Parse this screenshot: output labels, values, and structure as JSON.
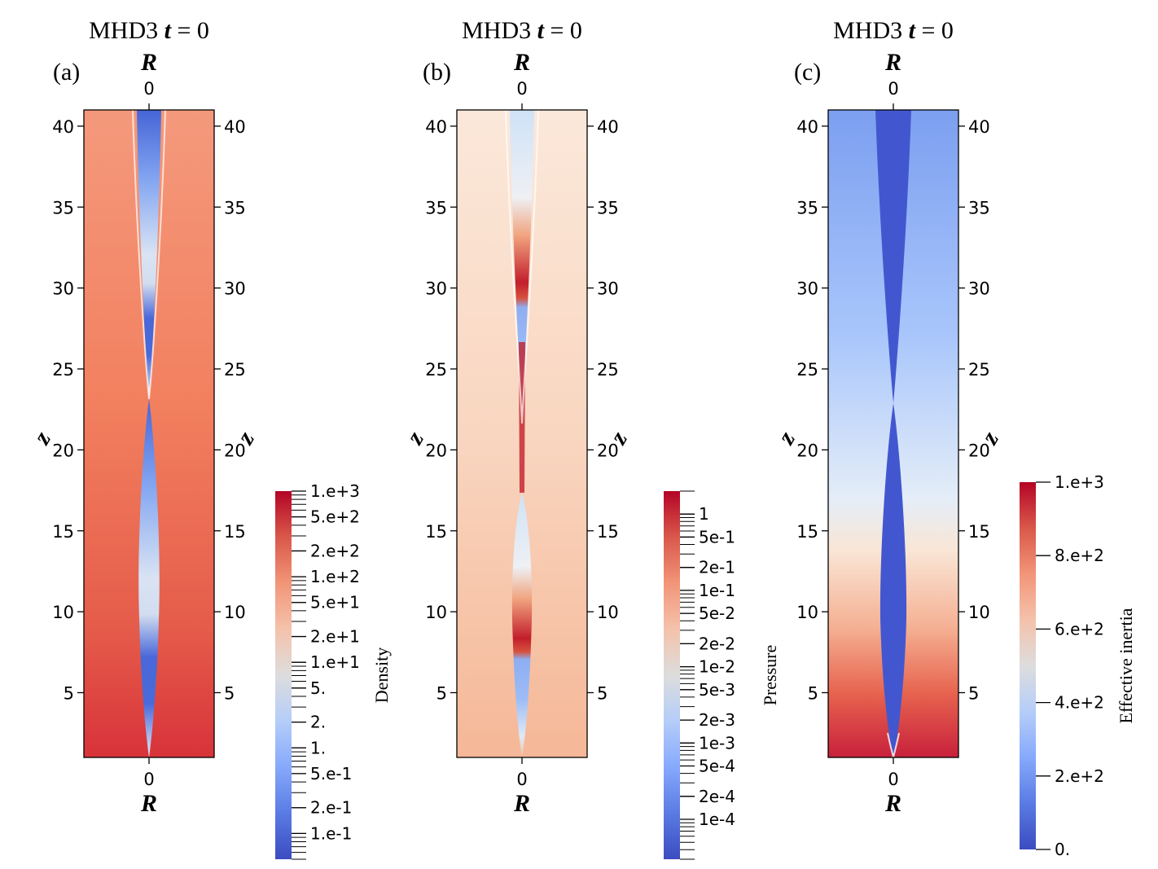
{
  "chart_data": [
    {
      "type": "heatmap",
      "panel_label": "(a)",
      "title_prefix": "MHD3",
      "title_var": "t",
      "title_suffix": " = 0",
      "xlabel": "R",
      "ylabel": "z",
      "x_ticks": [
        "0"
      ],
      "y_ticks": [
        5,
        10,
        15,
        20,
        25,
        30,
        35,
        40
      ],
      "ylim": [
        1,
        41
      ],
      "colorbar": {
        "label": "Density",
        "scale": "log",
        "range": [
          0.05,
          1000
        ],
        "ticks": [
          "1.e+3",
          "5.e+2",
          "2.e+2",
          "1.e+2",
          "5.e+1",
          "2.e+1",
          "1.e+1",
          "5.",
          "2.",
          "1.",
          "5.e-1",
          "2.e-1",
          "1.e-1"
        ],
        "tick_values": [
          1000,
          500,
          200,
          100,
          50,
          20,
          10,
          5,
          2,
          1,
          0.5,
          0.2,
          0.1
        ],
        "colormap": "coolwarm"
      }
    },
    {
      "type": "heatmap",
      "panel_label": "(b)",
      "title_prefix": "MHD3",
      "title_var": "t",
      "title_suffix": " = 0",
      "xlabel": "R",
      "ylabel": "z",
      "x_ticks": [
        "0"
      ],
      "y_ticks": [
        5,
        10,
        15,
        20,
        25,
        30,
        35,
        40
      ],
      "ylim": [
        1,
        41
      ],
      "colorbar": {
        "label": "Pressure",
        "scale": "log",
        "range": [
          3e-05,
          2
        ],
        "ticks": [
          "1",
          "5e-1",
          "2e-1",
          "1e-1",
          "5e-2",
          "2e-2",
          "1e-2",
          "5e-3",
          "2e-3",
          "1e-3",
          "5e-4",
          "2e-4",
          "1e-4"
        ],
        "tick_values": [
          1,
          0.5,
          0.2,
          0.1,
          0.05,
          0.02,
          0.01,
          0.005,
          0.002,
          0.001,
          0.0005,
          0.0002,
          0.0001
        ],
        "colormap": "coolwarm"
      }
    },
    {
      "type": "heatmap",
      "panel_label": "(c)",
      "title_prefix": "MHD3",
      "title_var": "t",
      "title_suffix": " = 0",
      "xlabel": "R",
      "ylabel": "z",
      "x_ticks": [
        "0"
      ],
      "y_ticks": [
        5,
        10,
        15,
        20,
        25,
        30,
        35,
        40
      ],
      "ylim": [
        1,
        41
      ],
      "colorbar": {
        "label": "Effective inertia",
        "scale": "linear",
        "range": [
          0,
          1000
        ],
        "ticks": [
          "1.e+3",
          "8.e+2",
          "6.e+2",
          "4.e+2",
          "2.e+2",
          "0."
        ],
        "tick_values": [
          1000,
          800,
          600,
          400,
          200,
          0
        ],
        "colormap": "coolwarm"
      }
    }
  ],
  "colors": {
    "cool": "#3b4cc0",
    "neutral": "#dddddd",
    "warm": "#b40426"
  }
}
